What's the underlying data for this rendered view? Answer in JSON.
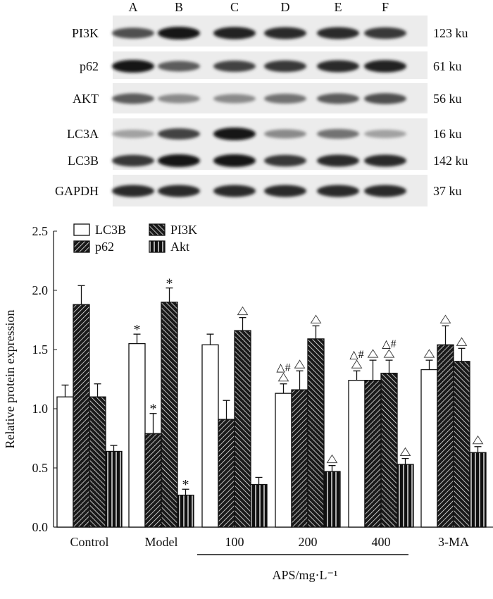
{
  "blot": {
    "lanes": [
      "A",
      "B",
      "C",
      "D",
      "E",
      "F"
    ],
    "rows": [
      {
        "label": "PI3K",
        "size": "123 ku",
        "intensity": [
          0.75,
          1.0,
          0.95,
          0.9,
          0.9,
          0.85
        ]
      },
      {
        "label": "p62",
        "size": "61 ku",
        "intensity": [
          1.0,
          0.7,
          0.8,
          0.85,
          0.9,
          0.95
        ]
      },
      {
        "label": "AKT",
        "size": "56 ku",
        "intensity": [
          0.7,
          0.5,
          0.5,
          0.6,
          0.7,
          0.75
        ]
      },
      {
        "label": "LC3A",
        "size": "16 ku",
        "intensity": [
          0.4,
          0.8,
          1.0,
          0.5,
          0.6,
          0.4
        ]
      },
      {
        "label": "LC3B",
        "size": "142 ku",
        "intensity": [
          0.85,
          1.0,
          1.0,
          0.85,
          0.9,
          0.9
        ]
      },
      {
        "label": "GAPDH",
        "size": "37 ku",
        "intensity": [
          0.9,
          0.9,
          0.9,
          0.9,
          0.9,
          0.9
        ]
      }
    ]
  },
  "chart_data": {
    "type": "bar",
    "ylabel": "Relative protein expression",
    "xlabel": "APS/mg·L⁻¹",
    "xlabel_group": [
      "100",
      "200",
      "400"
    ],
    "ylim": [
      0,
      2.5
    ],
    "yticks": [
      "0.0",
      "0.5",
      "1.0",
      "1.5",
      "2.0",
      "2.5"
    ],
    "categories": [
      "Control",
      "Model",
      "100",
      "200",
      "400",
      "3-MA"
    ],
    "legend_position": "top-left",
    "series": [
      {
        "name": "LC3B",
        "pattern": "white",
        "values": [
          1.1,
          1.55,
          1.54,
          1.13,
          1.24,
          1.33
        ],
        "errors": [
          0.1,
          0.08,
          0.09,
          0.08,
          0.08,
          0.08
        ],
        "marks": [
          "",
          "*",
          "",
          "△#",
          "△#",
          "△"
        ]
      },
      {
        "name": "p62",
        "pattern": "forward-hatch",
        "values": [
          1.88,
          0.79,
          0.91,
          1.16,
          1.24,
          1.54
        ],
        "errors": [
          0.16,
          0.17,
          0.16,
          0.16,
          0.17,
          0.16
        ],
        "marks": [
          "",
          "*",
          "",
          "△",
          "△",
          "△"
        ]
      },
      {
        "name": "PI3K",
        "pattern": "back-hatch",
        "values": [
          1.1,
          1.9,
          1.66,
          1.59,
          1.3,
          1.4
        ],
        "errors": [
          0.11,
          0.12,
          0.11,
          0.11,
          0.11,
          0.11
        ],
        "marks": [
          "",
          "*",
          "△",
          "△",
          "△#",
          "△"
        ]
      },
      {
        "name": "Akt",
        "pattern": "vertical",
        "values": [
          0.64,
          0.27,
          0.36,
          0.47,
          0.53,
          0.63
        ],
        "errors": [
          0.05,
          0.05,
          0.06,
          0.05,
          0.05,
          0.05
        ],
        "marks": [
          "",
          "*",
          "",
          "△",
          "△",
          "△"
        ]
      }
    ]
  }
}
